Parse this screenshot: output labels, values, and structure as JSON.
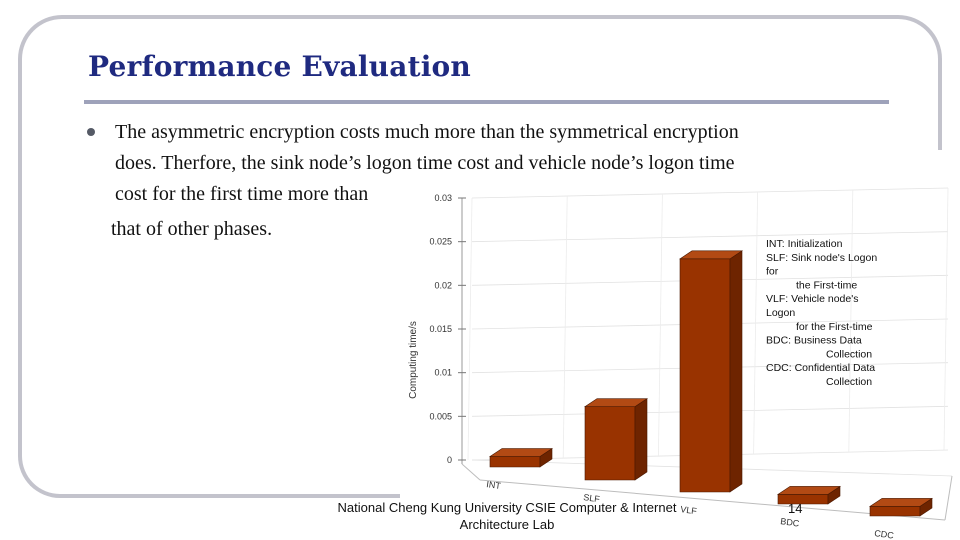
{
  "slide": {
    "title": "Performance Evaluation",
    "bullet_lines": [
      "The asymmetric encryption costs much more than the symmetrical encryption",
      "does. Therfore, the sink node’s logon time cost and vehicle node’s logon time",
      "cost for the first time more than",
      "that of other phases."
    ],
    "footer_line1": "National Cheng Kung University CSIE Computer & Internet",
    "footer_line2": "Architecture Lab",
    "page_number": "14"
  },
  "chart_data": {
    "type": "bar",
    "categories": [
      "INT",
      "SLF",
      "VLF",
      "BDC",
      "CDC"
    ],
    "values": [
      0.0012,
      0.0084,
      0.0267,
      0.0011,
      0.0011
    ],
    "ylabel": "Computing time/s",
    "ylim": [
      0,
      0.03
    ],
    "yticks": [
      "0",
      "0.005",
      "0.01",
      "0.015",
      "0.02",
      "0.025",
      "0.03"
    ],
    "bar_color": "#993300",
    "grid": true,
    "legend_position": "top-right",
    "legend_lines": [
      "INT: Initialization",
      "SLF: Sink node's Logon",
      "for",
      "the First-time",
      "VLF: Vehicle node's",
      "Logon",
      "for the First-time",
      "BDC: Business Data",
      "Collection",
      "CDC: Confidential Data",
      "Collection"
    ]
  }
}
